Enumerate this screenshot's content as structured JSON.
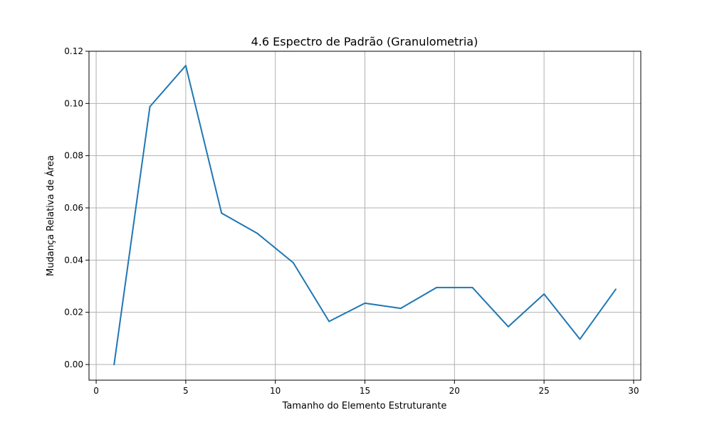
{
  "chart_data": {
    "type": "line",
    "title": "4.6 Espectro de Padrão (Granulometria)",
    "xlabel": "Tamanho do Elemento Estruturante",
    "ylabel": "Mudança Relativa de Área",
    "x": [
      1,
      3,
      5,
      7,
      9,
      11,
      13,
      15,
      17,
      19,
      21,
      23,
      25,
      27,
      29
    ],
    "series": [
      {
        "values": [
          0.0,
          0.0988,
          0.1145,
          0.058,
          0.0502,
          0.039,
          0.0165,
          0.0235,
          0.0215,
          0.0295,
          0.0295,
          0.0145,
          0.027,
          0.0097,
          0.0288
        ],
        "color": "#1f77b4"
      }
    ],
    "xlim": [
      -0.4,
      30.4
    ],
    "ylim": [
      -0.006,
      0.12
    ],
    "xticks": [
      0,
      5,
      10,
      15,
      20,
      25,
      30
    ],
    "xtick_labels": [
      "0",
      "5",
      "10",
      "15",
      "20",
      "25",
      "30"
    ],
    "yticks": [
      0.0,
      0.02,
      0.04,
      0.06,
      0.08,
      0.1,
      0.12
    ],
    "ytick_labels": [
      "0.00",
      "0.02",
      "0.04",
      "0.06",
      "0.08",
      "0.10",
      "0.12"
    ],
    "grid": true,
    "grid_color": "#b0b0b0",
    "legend": "none"
  }
}
